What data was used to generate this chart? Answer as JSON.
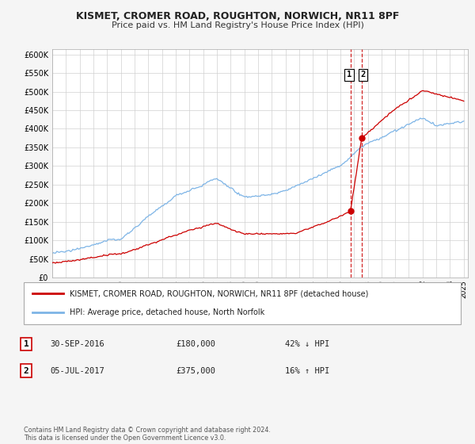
{
  "title": "KISMET, CROMER ROAD, ROUGHTON, NORWICH, NR11 8PF",
  "subtitle": "Price paid vs. HM Land Registry's House Price Index (HPI)",
  "ylabel_ticks": [
    "£0",
    "£50K",
    "£100K",
    "£150K",
    "£200K",
    "£250K",
    "£300K",
    "£350K",
    "£400K",
    "£450K",
    "£500K",
    "£550K",
    "£600K"
  ],
  "ytick_values": [
    0,
    50000,
    100000,
    150000,
    200000,
    250000,
    300000,
    350000,
    400000,
    450000,
    500000,
    550000,
    600000
  ],
  "x_start_year": 1995,
  "x_end_year": 2025,
  "sale1_date": 2016.75,
  "sale1_price": 180000,
  "sale2_date": 2017.55,
  "sale2_price": 375000,
  "hpi_line_color": "#7db4e6",
  "price_line_color": "#cc0000",
  "vline_color": "#cc0000",
  "legend1_label": "KISMET, CROMER ROAD, ROUGHTON, NORWICH, NR11 8PF (detached house)",
  "legend2_label": "HPI: Average price, detached house, North Norfolk",
  "ann1_num": "1",
  "ann1_date": "30-SEP-2016",
  "ann1_price": "£180,000",
  "ann1_pct": "42% ↓ HPI",
  "ann2_num": "2",
  "ann2_date": "05-JUL-2017",
  "ann2_price": "£375,000",
  "ann2_pct": "16% ↑ HPI",
  "footnote": "Contains HM Land Registry data © Crown copyright and database right 2024.\nThis data is licensed under the Open Government Licence v3.0.",
  "background_color": "#f5f5f5",
  "plot_bg_color": "#ffffff",
  "label_box1_color": "#cc0000",
  "label_box2_color": "#cc0000"
}
